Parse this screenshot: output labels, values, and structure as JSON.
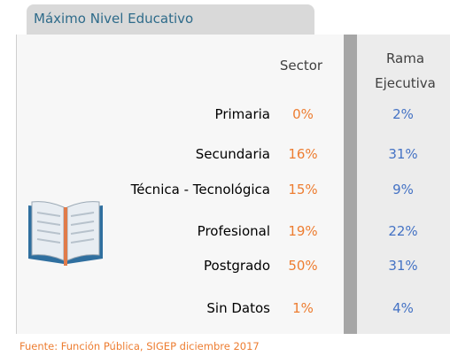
{
  "header": {
    "title": "Máximo Nivel Educativo"
  },
  "table": {
    "columns": [
      "Sector",
      "Rama\nEjecutiva"
    ],
    "rows": [
      [
        "Primaria",
        "0%",
        "2%"
      ],
      [
        "Secundaria",
        "16%",
        "31%"
      ],
      [
        "Técnica - Tecnológica",
        "15%",
        "9%"
      ],
      [
        "Profesional",
        "19%",
        "22%"
      ],
      [
        "Postgrado",
        "50%",
        "31%"
      ],
      [
        "Sin Datos",
        "1%",
        "4%"
      ]
    ]
  },
  "source": "Fuente: Función Pública, SIGEP diciembre 2017"
}
